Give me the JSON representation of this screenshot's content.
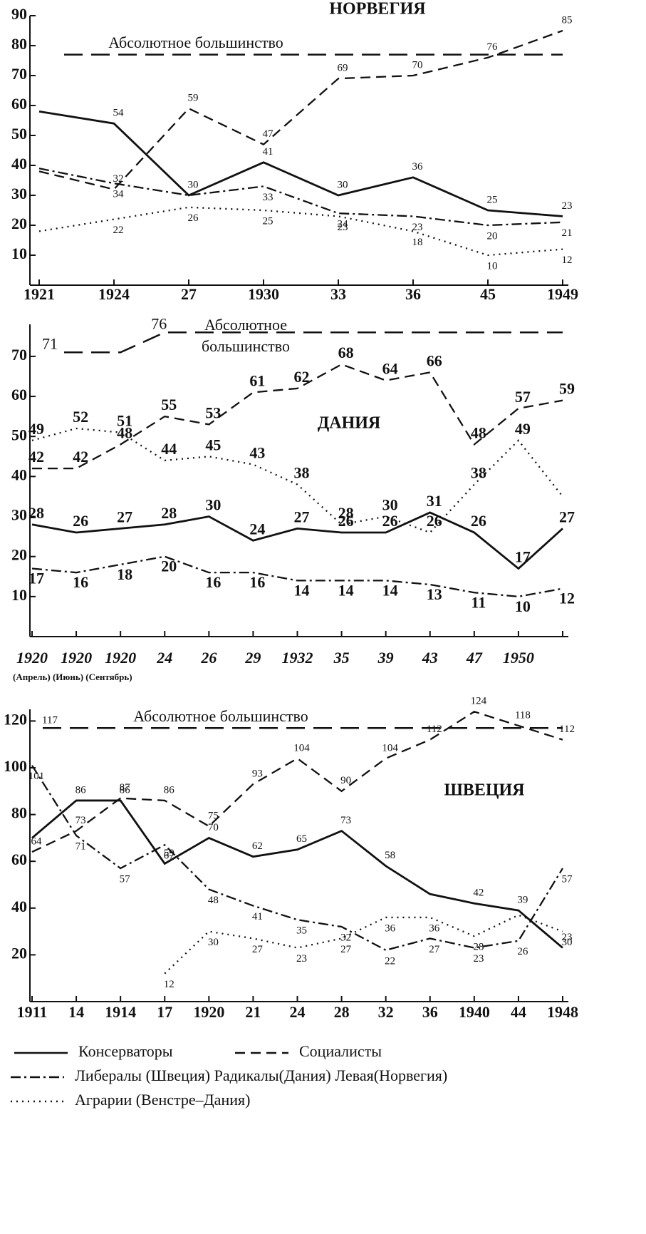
{
  "chart_data": [
    {
      "type": "line",
      "title": "НОРВЕГИЯ",
      "categories": [
        "1921",
        "1924",
        "27",
        "1930",
        "33",
        "36",
        "45",
        "1949"
      ],
      "ylim": [
        0,
        90
      ],
      "yticks": [
        10,
        20,
        30,
        40,
        50,
        60,
        70,
        80,
        90
      ],
      "majority": {
        "label": "Абсолютное большинство",
        "values": [
          77,
          77,
          77,
          77,
          77,
          77,
          77,
          77
        ]
      },
      "series": [
        {
          "dash": "solid",
          "color": "#111",
          "values": [
            58,
            54,
            30,
            41,
            30,
            36,
            25,
            23
          ],
          "value_labels": [
            null,
            "54",
            "30",
            "41",
            "30",
            "36",
            "25",
            "23"
          ]
        },
        {
          "dash": "dashed",
          "color": "#111",
          "values": [
            38,
            32,
            59,
            47,
            69,
            70,
            76,
            85
          ],
          "value_labels": [
            null,
            "32",
            "59",
            "47",
            "69",
            "70",
            "76",
            "85"
          ]
        },
        {
          "dash": "dashdot",
          "color": "#111",
          "values": [
            39,
            34,
            30,
            33,
            24,
            23,
            20,
            21
          ],
          "value_labels": [
            null,
            "34",
            null,
            "33",
            "24",
            "23",
            "20",
            "21"
          ]
        },
        {
          "dash": "dotted",
          "color": "#111",
          "values": [
            18,
            22,
            26,
            25,
            23,
            18,
            10,
            12
          ],
          "value_labels": [
            null,
            "22",
            "26",
            "25",
            "23",
            "18",
            "10",
            "12"
          ]
        }
      ]
    },
    {
      "type": "line",
      "title": "ДАНИЯ",
      "categories": [
        "1920",
        "1920",
        "1920",
        "24",
        "26",
        "29",
        "1932",
        "35",
        "39",
        "43",
        "47",
        "1950",
        null
      ],
      "x_note": "(Апрель) (Июнь) (Сентябрь)",
      "ylim": [
        0,
        78
      ],
      "yticks": [
        10,
        20,
        30,
        40,
        50,
        60,
        70
      ],
      "majority": {
        "label": [
          "Абсолютное",
          "большинство"
        ],
        "values": [
          71,
          71,
          71,
          76,
          76,
          76,
          76,
          76,
          76,
          76,
          76,
          76,
          76
        ],
        "value_labels": [
          "71",
          null,
          null,
          "76",
          null,
          null,
          null,
          null,
          null,
          null,
          null,
          null,
          null
        ]
      },
      "series": [
        {
          "dash": "solid",
          "color": "#111",
          "values": [
            28,
            26,
            27,
            28,
            30,
            24,
            27,
            26,
            26,
            31,
            26,
            17,
            27
          ],
          "value_labels": [
            "28",
            "26",
            "27",
            "28",
            "30",
            "24",
            "27",
            "26",
            "26",
            "31",
            "26",
            "17",
            "27"
          ]
        },
        {
          "dash": "dashed",
          "color": "#111",
          "values": [
            42,
            42,
            48,
            55,
            53,
            61,
            62,
            68,
            64,
            66,
            48,
            57,
            59
          ],
          "value_labels": [
            "42",
            "42",
            "48",
            "55",
            "53",
            "61",
            "62",
            "68",
            "64",
            "66",
            "48",
            "57",
            "59"
          ]
        },
        {
          "dash": "dashdot",
          "color": "#111",
          "values": [
            17,
            16,
            18,
            20,
            16,
            16,
            14,
            14,
            14,
            13,
            11,
            10,
            12
          ],
          "value_labels": [
            "17",
            "16",
            "18",
            "20",
            "16",
            "16",
            "14",
            "14",
            "14",
            "13",
            "11",
            "10",
            "12"
          ]
        },
        {
          "dash": "dotted",
          "color": "#111",
          "values": [
            49,
            52,
            51,
            44,
            45,
            43,
            38,
            28,
            30,
            26,
            38,
            49,
            35
          ],
          "value_labels": [
            "49",
            "52",
            "51",
            "44",
            "45",
            "43",
            "38",
            "28",
            "30",
            "26",
            "38",
            "49",
            null
          ]
        }
      ]
    },
    {
      "type": "line",
      "title": "ШВЕЦИЯ",
      "categories": [
        "1911",
        "14",
        "1914",
        "17",
        "1920",
        "21",
        "24",
        "28",
        "32",
        "36",
        "1940",
        "44",
        "1948"
      ],
      "ylim": [
        0,
        125
      ],
      "yticks": [
        20,
        40,
        60,
        80,
        100,
        120
      ],
      "majority": {
        "label": "Абсолютное большинство",
        "values": [
          117,
          117,
          117,
          117,
          117,
          117,
          117,
          117,
          117,
          117,
          117,
          117,
          117
        ],
        "value_labels": [
          "117",
          null,
          null,
          null,
          null,
          null,
          null,
          null,
          null,
          null,
          null,
          null,
          null
        ]
      },
      "series": [
        {
          "dash": "solid",
          "color": "#111",
          "values": [
            70,
            86,
            86,
            59,
            70,
            62,
            65,
            73,
            58,
            46,
            42,
            39,
            23
          ],
          "value_labels": [
            null,
            "86",
            "86",
            "59",
            "70",
            "62",
            "65",
            "73",
            "58",
            null,
            "42",
            "39",
            "23"
          ]
        },
        {
          "dash": "dashed",
          "color": "#111",
          "values": [
            64,
            73,
            87,
            86,
            75,
            93,
            104,
            90,
            104,
            112,
            124,
            118,
            112
          ],
          "value_labels": [
            "64",
            "73",
            "87",
            "86",
            "75",
            "93",
            "104",
            "90",
            "104",
            "112",
            "124",
            "118",
            "112"
          ]
        },
        {
          "dash": "dashdot",
          "color": "#111",
          "values": [
            101,
            71,
            57,
            67,
            48,
            41,
            35,
            32,
            22,
            27,
            23,
            26,
            57
          ],
          "value_labels": [
            "101",
            "71",
            "57",
            "67",
            "48",
            "41",
            "35",
            "32",
            "22",
            "27",
            "23",
            "26",
            "57"
          ]
        },
        {
          "dash": "dotted",
          "color": "#111",
          "values": [
            null,
            null,
            null,
            12,
            30,
            27,
            23,
            27,
            36,
            36,
            28,
            37,
            30
          ],
          "value_labels": [
            null,
            null,
            null,
            "12",
            "30",
            "27",
            "23",
            "27",
            "36",
            "36",
            "28",
            null,
            "30"
          ]
        }
      ]
    }
  ],
  "legend": [
    {
      "name": "Консерваторы",
      "dash": "solid"
    },
    {
      "name": "Социалисты",
      "dash": "dashed"
    },
    {
      "name": "Либералы (Швеция) Радикалы(Дания) Левая(Норвегия)",
      "dash": "dashdot"
    },
    {
      "name": "Аграрии (Венстре–Дания)",
      "dash": "dotted"
    }
  ]
}
